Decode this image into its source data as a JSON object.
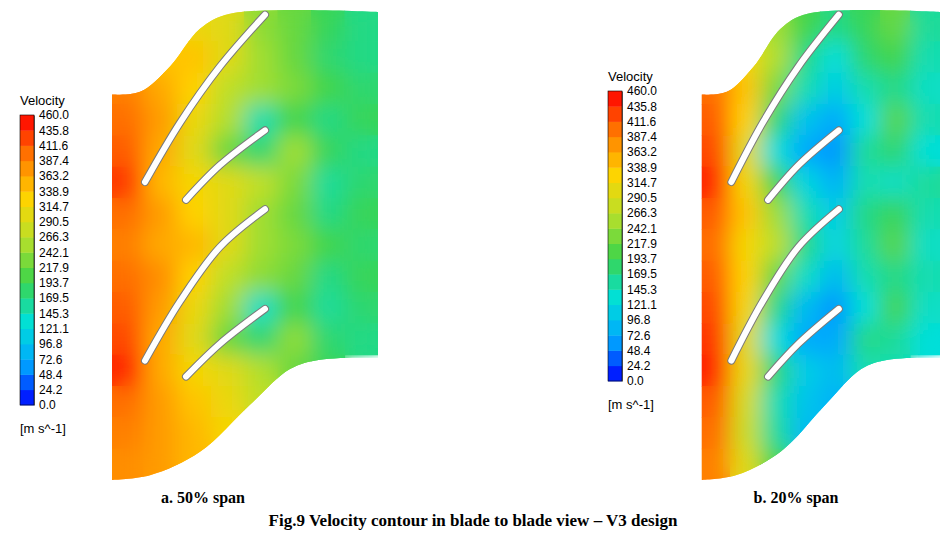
{
  "caption": "Fig.9 Velocity contour in blade to blade view – V3 design",
  "chart_data": [
    {
      "type": "contour",
      "title": "a. 50% span",
      "colorbar": {
        "title": "Velocity",
        "unit": "[m s^-1]",
        "range": [
          0,
          460
        ],
        "ticks": [
          {
            "value": 0,
            "label": "0.0"
          },
          24.2,
          48.4,
          72.6,
          96.8,
          121.1,
          145.3,
          169.5,
          193.7,
          217.9,
          242.1,
          266.3,
          290.5,
          314.7,
          338.9,
          363.2,
          387.4,
          411.6,
          435.8,
          {
            "value": 460,
            "label": "460.0"
          }
        ]
      },
      "cells": [
        [
          null,
          null,
          310,
          300,
          240,
          220,
          190,
          170
        ],
        [
          null,
          340,
          340,
          300,
          250,
          220,
          180,
          170
        ],
        [
          390,
          360,
          330,
          270,
          250,
          230,
          200,
          180
        ],
        [
          400,
          370,
          310,
          260,
          150,
          200,
          170,
          190
        ],
        [
          410,
          360,
          300,
          220,
          180,
          250,
          190,
          170
        ],
        [
          430,
          350,
          320,
          300,
          270,
          230,
          160,
          180
        ],
        [
          400,
          370,
          330,
          300,
          250,
          220,
          170,
          190
        ],
        [
          390,
          360,
          350,
          300,
          250,
          230,
          200,
          180
        ],
        [
          400,
          380,
          330,
          270,
          240,
          220,
          170,
          190
        ],
        [
          410,
          370,
          310,
          250,
          140,
          200,
          160,
          180
        ],
        [
          420,
          360,
          300,
          220,
          180,
          240,
          180,
          170
        ],
        [
          440,
          360,
          320,
          300,
          260,
          220,
          190,
          null
        ],
        [
          400,
          370,
          340,
          310,
          270,
          null,
          null,
          null
        ],
        [
          390,
          370,
          350,
          320,
          null,
          null,
          null,
          null
        ],
        [
          380,
          370,
          350,
          null,
          null,
          null,
          null,
          null
        ]
      ]
    },
    {
      "type": "contour",
      "title": "b. 20% span",
      "colorbar": {
        "title": "Velocity",
        "unit": "[m s^-1]",
        "range": [
          0,
          460
        ],
        "ticks": [
          {
            "value": 0,
            "label": "0.0"
          },
          24.2,
          48.4,
          72.6,
          96.8,
          121.1,
          145.3,
          169.5,
          193.7,
          217.9,
          242.1,
          266.3,
          290.5,
          314.7,
          338.9,
          363.2,
          387.4,
          411.6,
          435.8,
          {
            "value": 460,
            "label": "460.0"
          }
        ]
      },
      "cells": [
        [
          null,
          null,
          250,
          200,
          170,
          190,
          220,
          160
        ],
        [
          null,
          320,
          260,
          170,
          130,
          180,
          200,
          150
        ],
        [
          400,
          340,
          230,
          150,
          110,
          150,
          170,
          140
        ],
        [
          410,
          330,
          180,
          100,
          70,
          130,
          210,
          150
        ],
        [
          420,
          300,
          130,
          70,
          60,
          160,
          180,
          130
        ],
        [
          440,
          320,
          200,
          120,
          80,
          150,
          140,
          160
        ],
        [
          410,
          340,
          250,
          150,
          110,
          170,
          190,
          150
        ],
        [
          400,
          320,
          270,
          170,
          120,
          160,
          210,
          140
        ],
        [
          410,
          330,
          220,
          140,
          90,
          150,
          170,
          150
        ],
        [
          420,
          320,
          170,
          90,
          60,
          130,
          200,
          140
        ],
        [
          430,
          300,
          130,
          70,
          70,
          170,
          160,
          130
        ],
        [
          440,
          310,
          180,
          110,
          90,
          150,
          150,
          null
        ],
        [
          410,
          290,
          150,
          100,
          80,
          null,
          null,
          null
        ],
        [
          400,
          280,
          160,
          90,
          null,
          null,
          null,
          null
        ],
        [
          390,
          300,
          200,
          null,
          null,
          null,
          null,
          null
        ]
      ]
    }
  ]
}
